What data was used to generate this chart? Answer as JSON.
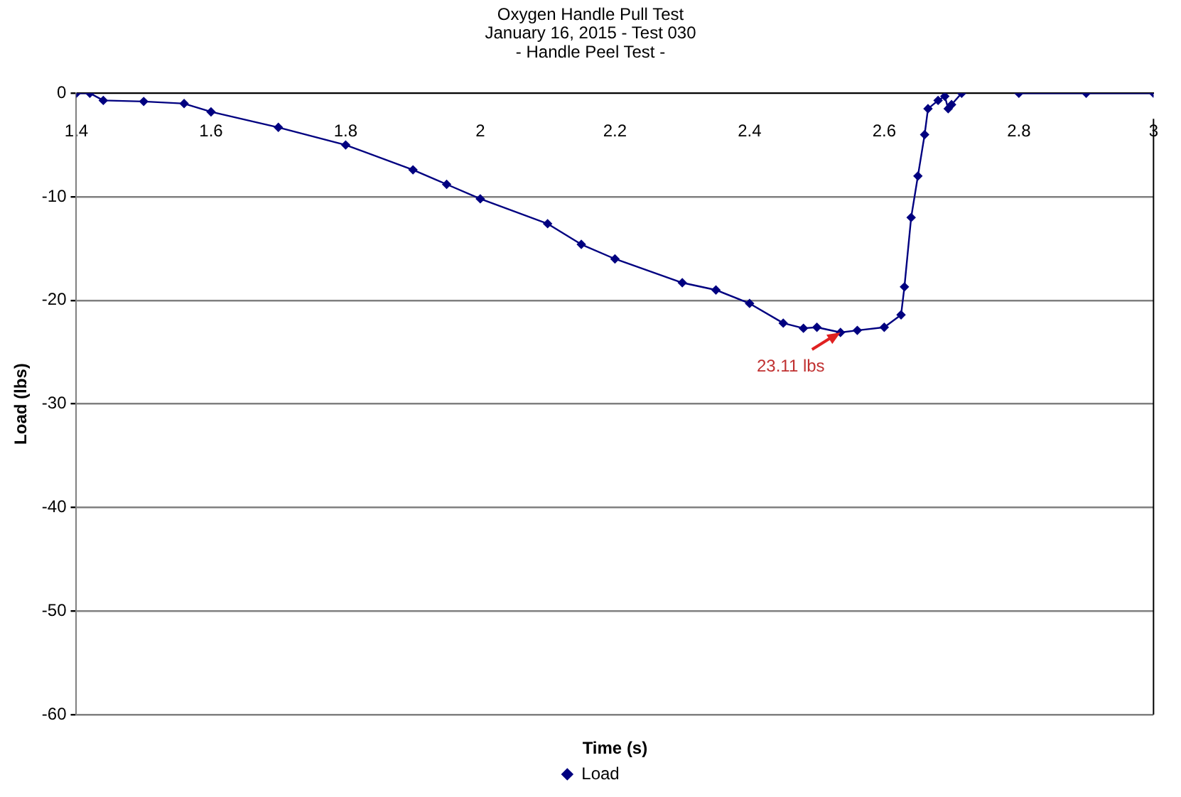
{
  "chart_data": {
    "type": "line",
    "title": [
      "Oxygen Handle Pull Test",
      "January 16, 2015 - Test 030",
      "- Handle Peel Test -"
    ],
    "xlabel": "Time (s)",
    "ylabel": "Load (lbs)",
    "xlim": [
      1.4,
      3
    ],
    "xticks": [
      1.4,
      1.6,
      1.8,
      2,
      2.2,
      2.4,
      2.6,
      2.8,
      3
    ],
    "ylim": [
      -60,
      0
    ],
    "yticks": [
      -60,
      -50,
      -40,
      -30,
      -20,
      -10,
      0
    ],
    "grid": "y",
    "legend": "bottom",
    "marker": "diamond",
    "line_style": "solid",
    "annotations": [
      {
        "text": "23.11 lbs",
        "x": 2.535,
        "y": -23.1
      }
    ],
    "series": [
      {
        "name": "Load",
        "color": "#000080",
        "x": [
          1.4,
          1.42,
          1.44,
          1.5,
          1.56,
          1.6,
          1.7,
          1.8,
          1.9,
          1.95,
          2,
          2.1,
          2.15,
          2.2,
          2.3,
          2.35,
          2.4,
          2.45,
          2.48,
          2.5,
          2.535,
          2.56,
          2.6,
          2.625,
          2.63,
          2.64,
          2.65,
          2.66,
          2.665,
          2.68,
          2.69,
          2.695,
          2.7,
          2.715,
          2.75,
          2.8,
          2.9,
          3
        ],
        "values": [
          0,
          0,
          -0.7,
          -0.8,
          -1,
          -1.8,
          -3.3,
          -5,
          -7.4,
          -8.8,
          -10.2,
          -12.6,
          -14.6,
          -16,
          -18.3,
          -19,
          -20.3,
          -22.2,
          -22.7,
          -22.6,
          -23.1,
          -22.9,
          -22.6,
          -21.4,
          -18.7,
          -12,
          -8,
          -4,
          -1.5,
          -0.7,
          -0.3,
          -1.5,
          -1.1,
          0,
          null,
          0,
          0,
          0
        ]
      }
    ]
  }
}
